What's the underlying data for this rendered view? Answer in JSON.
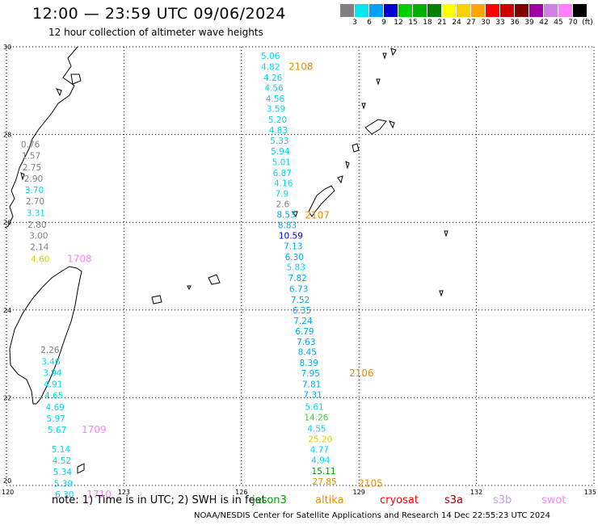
{
  "header": {
    "title": "12:00 — 23:59 UTC 09/06/2024",
    "subtitle": "12 hour collection of altimeter wave heights"
  },
  "colorbar": {
    "unit": "(ft)",
    "bins": [
      {
        "label": "3",
        "color": "#808080"
      },
      {
        "label": "6",
        "color": "#00e5ee"
      },
      {
        "label": "9",
        "color": "#00a0ff"
      },
      {
        "label": "12",
        "color": "#0000d0"
      },
      {
        "label": "15",
        "color": "#00d000"
      },
      {
        "label": "18",
        "color": "#00b000"
      },
      {
        "label": "21",
        "color": "#008000"
      },
      {
        "label": "24",
        "color": "#ffff00"
      },
      {
        "label": "27",
        "color": "#ffd000"
      },
      {
        "label": "30",
        "color": "#ffa500"
      },
      {
        "label": "33",
        "color": "#ff0000"
      },
      {
        "label": "36",
        "color": "#d00000"
      },
      {
        "label": "39",
        "color": "#800000"
      },
      {
        "label": "42",
        "color": "#a000a0"
      },
      {
        "label": "45",
        "color": "#d080e0"
      },
      {
        "label": "70",
        "color": "#ff80ff"
      },
      {
        "label": "",
        "color": "#000000"
      }
    ]
  },
  "axes": {
    "lat_labels": [
      "30",
      "28",
      "26",
      "24",
      "22",
      "20"
    ],
    "lon_labels": [
      "120",
      "123",
      "126",
      "129",
      "132",
      "135"
    ]
  },
  "observations": [
    {
      "v": "5.06",
      "c": "#00d8e8",
      "lon": 126.5,
      "lat": 29.8
    },
    {
      "v": "4.82",
      "c": "#00d8e8",
      "lon": 126.5,
      "lat": 29.55
    },
    {
      "v": "4.26",
      "c": "#00d8e8",
      "lon": 126.56,
      "lat": 29.3
    },
    {
      "v": "4.56",
      "c": "#00d8e8",
      "lon": 126.59,
      "lat": 29.07
    },
    {
      "v": "4.56",
      "c": "#00d8e8",
      "lon": 126.62,
      "lat": 28.82
    },
    {
      "v": "3.59",
      "c": "#00d8e8",
      "lon": 126.64,
      "lat": 28.59
    },
    {
      "v": "5.20",
      "c": "#00d8e8",
      "lon": 126.68,
      "lat": 28.34
    },
    {
      "v": "4.83",
      "c": "#00d8e8",
      "lon": 126.7,
      "lat": 28.1
    },
    {
      "v": "5.33",
      "c": "#00d8e8",
      "lon": 126.73,
      "lat": 27.86
    },
    {
      "v": "5.94",
      "c": "#00d8e8",
      "lon": 126.75,
      "lat": 27.62
    },
    {
      "v": "5.01",
      "c": "#00d8e8",
      "lon": 126.78,
      "lat": 27.38
    },
    {
      "v": "6.87",
      "c": "#00d8e8",
      "lon": 126.8,
      "lat": 27.13
    },
    {
      "v": "4.16",
      "c": "#00d8e8",
      "lon": 126.83,
      "lat": 26.9
    },
    {
      "v": "7.9",
      "c": "#00d8e8",
      "lon": 126.86,
      "lat": 26.66
    },
    {
      "v": "2.6",
      "c": "#808080",
      "lon": 126.88,
      "lat": 26.42
    },
    {
      "v": "8.53",
      "c": "#00a8f0",
      "lon": 126.9,
      "lat": 26.18
    },
    {
      "v": "8.83",
      "c": "#00a8f0",
      "lon": 126.93,
      "lat": 25.94
    },
    {
      "v": "10.59",
      "c": "#0000d0",
      "lon": 126.95,
      "lat": 25.7
    },
    {
      "v": "7.13",
      "c": "#00a8f0",
      "lon": 127.08,
      "lat": 25.46
    },
    {
      "v": "6.30",
      "c": "#00a8f0",
      "lon": 127.11,
      "lat": 25.21
    },
    {
      "v": "5.83",
      "c": "#00d8e8",
      "lon": 127.15,
      "lat": 24.98
    },
    {
      "v": "7.82",
      "c": "#00a8f0",
      "lon": 127.19,
      "lat": 24.73
    },
    {
      "v": "6.73",
      "c": "#00a8f0",
      "lon": 127.22,
      "lat": 24.48
    },
    {
      "v": "7.52",
      "c": "#00a8f0",
      "lon": 127.26,
      "lat": 24.24
    },
    {
      "v": "6.35",
      "c": "#00a8f0",
      "lon": 127.3,
      "lat": 24.0
    },
    {
      "v": "7.24",
      "c": "#00a8f0",
      "lon": 127.33,
      "lat": 23.76
    },
    {
      "v": "6.79",
      "c": "#00a8f0",
      "lon": 127.37,
      "lat": 23.52
    },
    {
      "v": "7.63",
      "c": "#00a8f0",
      "lon": 127.41,
      "lat": 23.28
    },
    {
      "v": "8.45",
      "c": "#00a8f0",
      "lon": 127.44,
      "lat": 23.05
    },
    {
      "v": "8.39",
      "c": "#00a8f0",
      "lon": 127.48,
      "lat": 22.8
    },
    {
      "v": "7.95",
      "c": "#00a8f0",
      "lon": 127.52,
      "lat": 22.56
    },
    {
      "v": "7.81",
      "c": "#00a8f0",
      "lon": 127.55,
      "lat": 22.31
    },
    {
      "v": "7.31",
      "c": "#00a8f0",
      "lon": 127.58,
      "lat": 22.07
    },
    {
      "v": "5.61",
      "c": "#00d8e8",
      "lon": 127.62,
      "lat": 21.8
    },
    {
      "v": "14.26",
      "c": "#40d040",
      "lon": 127.6,
      "lat": 21.56
    },
    {
      "v": "4.55",
      "c": "#00d8e8",
      "lon": 127.68,
      "lat": 21.3
    },
    {
      "v": "25.20",
      "c": "#e0d000",
      "lon": 127.7,
      "lat": 21.06
    },
    {
      "v": "4.77",
      "c": "#00d8e8",
      "lon": 127.75,
      "lat": 20.82
    },
    {
      "v": "4.94",
      "c": "#00d8e8",
      "lon": 127.78,
      "lat": 20.58
    },
    {
      "v": "15.11",
      "c": "#00a000",
      "lon": 127.79,
      "lat": 20.33
    },
    {
      "v": "27.85",
      "c": "#e09000",
      "lon": 127.81,
      "lat": 20.09
    },
    {
      "v": "0.76",
      "c": "#808080",
      "lon": 120.37,
      "lat": 27.78
    },
    {
      "v": "1.57",
      "c": "#808080",
      "lon": 120.39,
      "lat": 27.52
    },
    {
      "v": "2.75",
      "c": "#808080",
      "lon": 120.41,
      "lat": 27.26
    },
    {
      "v": "2.90",
      "c": "#808080",
      "lon": 120.45,
      "lat": 27.0
    },
    {
      "v": "3.70",
      "c": "#00d8e8",
      "lon": 120.47,
      "lat": 26.74
    },
    {
      "v": "2.70",
      "c": "#808080",
      "lon": 120.49,
      "lat": 26.48
    },
    {
      "v": "3.31",
      "c": "#00d8e8",
      "lon": 120.51,
      "lat": 26.22
    },
    {
      "v": "2.80",
      "c": "#808080",
      "lon": 120.54,
      "lat": 25.95
    },
    {
      "v": "3.00",
      "c": "#808080",
      "lon": 120.58,
      "lat": 25.7
    },
    {
      "v": "2.14",
      "c": "#808080",
      "lon": 120.6,
      "lat": 25.44
    },
    {
      "v": "4.60",
      "c": "#e0d000",
      "lon": 120.62,
      "lat": 25.17
    },
    {
      "v": "2.26",
      "c": "#808080",
      "lon": 120.87,
      "lat": 23.09
    },
    {
      "v": "3.46",
      "c": "#00d8e8",
      "lon": 120.89,
      "lat": 22.83
    },
    {
      "v": "3.94",
      "c": "#00d8e8",
      "lon": 120.93,
      "lat": 22.57
    },
    {
      "v": "4.91",
      "c": "#00d8e8",
      "lon": 120.95,
      "lat": 22.31
    },
    {
      "v": "4.65",
      "c": "#00d8e8",
      "lon": 120.97,
      "lat": 22.05
    },
    {
      "v": "4.69",
      "c": "#00d8e8",
      "lon": 121.0,
      "lat": 21.79
    },
    {
      "v": "5.97",
      "c": "#00d8e8",
      "lon": 121.02,
      "lat": 21.53
    },
    {
      "v": "5.67",
      "c": "#00d8e8",
      "lon": 121.05,
      "lat": 21.27
    },
    {
      "v": "5.14",
      "c": "#00d8e8",
      "lon": 121.15,
      "lat": 20.83
    },
    {
      "v": "4.52",
      "c": "#00d8e8",
      "lon": 121.17,
      "lat": 20.57
    },
    {
      "v": "5.34",
      "c": "#00d8e8",
      "lon": 121.19,
      "lat": 20.31
    },
    {
      "v": "5.39",
      "c": "#00d8e8",
      "lon": 121.21,
      "lat": 20.05
    },
    {
      "v": "6.30",
      "c": "#00d8e8",
      "lon": 121.24,
      "lat": 19.8
    }
  ],
  "tracks": [
    {
      "label": "2108",
      "c": "#e89000",
      "lon": 127.2,
      "lat": 29.55
    },
    {
      "label": "2107",
      "c": "#e89000",
      "lon": 127.62,
      "lat": 26.16
    },
    {
      "label": "2106",
      "c": "#e89000",
      "lon": 128.75,
      "lat": 22.56
    },
    {
      "label": "2105",
      "c": "#e89000",
      "lon": 128.98,
      "lat": 20.05
    },
    {
      "label": "1708",
      "c": "#ff80ff",
      "lon": 121.55,
      "lat": 25.17
    },
    {
      "label": "1709",
      "c": "#ff80ff",
      "lon": 121.92,
      "lat": 21.27
    },
    {
      "label": "1710",
      "c": "#ff80ff",
      "lon": 122.05,
      "lat": 19.8
    }
  ],
  "note": {
    "text": "note:  1) Time is in UTC; 2) SWH is in feet",
    "sats": [
      {
        "name": "jason3",
        "color": "#00a000"
      },
      {
        "name": "altika",
        "color": "#e89000"
      },
      {
        "name": "cryosat",
        "color": "#ff0000"
      },
      {
        "name": "s3a",
        "color": "#a00000"
      },
      {
        "name": "s3b",
        "color": "#c0a0e8"
      },
      {
        "name": "swot",
        "color": "#ff80ff"
      }
    ]
  },
  "footer": "NOAA/NESDIS Center for Satellite Applications and Research     14 Dec 22:55:23 UTC 2024"
}
